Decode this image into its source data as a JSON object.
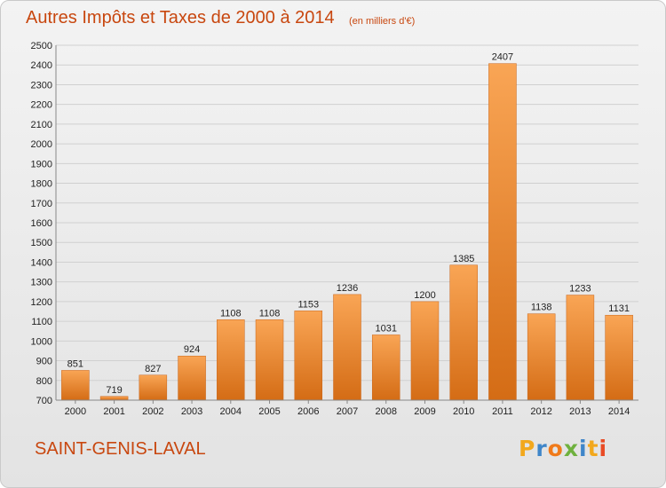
{
  "header": {
    "title": "Autres Impôts et Taxes de 2000 à 2014",
    "subtitle": "(en milliers d'€)"
  },
  "footer": {
    "location": "SAINT-GENIS-LAVAL",
    "logo": "Proxiti"
  },
  "colors": {
    "bar_top": "#f9a555",
    "bar_bottom": "#d46c15",
    "text_accent": "#c8470f",
    "grid": "#d0d0d0",
    "logo_letters": [
      "#f2a81d",
      "#3f86c9",
      "#f07a1a",
      "#6fb13e",
      "#3f86c9",
      "#f2a81d",
      "#e94b25"
    ]
  },
  "chart_data": {
    "type": "bar",
    "categories": [
      "2000",
      "2001",
      "2002",
      "2003",
      "2004",
      "2005",
      "2006",
      "2007",
      "2008",
      "2009",
      "2010",
      "2011",
      "2012",
      "2013",
      "2014"
    ],
    "values": [
      851,
      719,
      827,
      924,
      1108,
      1108,
      1153,
      1236,
      1031,
      1200,
      1385,
      2407,
      1138,
      1233,
      1131
    ],
    "yticks": [
      700,
      800,
      900,
      1000,
      1100,
      1200,
      1300,
      1400,
      1500,
      1600,
      1700,
      1800,
      1900,
      2000,
      2100,
      2200,
      2300,
      2400,
      2500
    ],
    "ylim": [
      700,
      2500
    ],
    "grid": true,
    "title": "Autres Impôts et Taxes de 2000 à 2014",
    "xlabel": "",
    "ylabel": ""
  }
}
